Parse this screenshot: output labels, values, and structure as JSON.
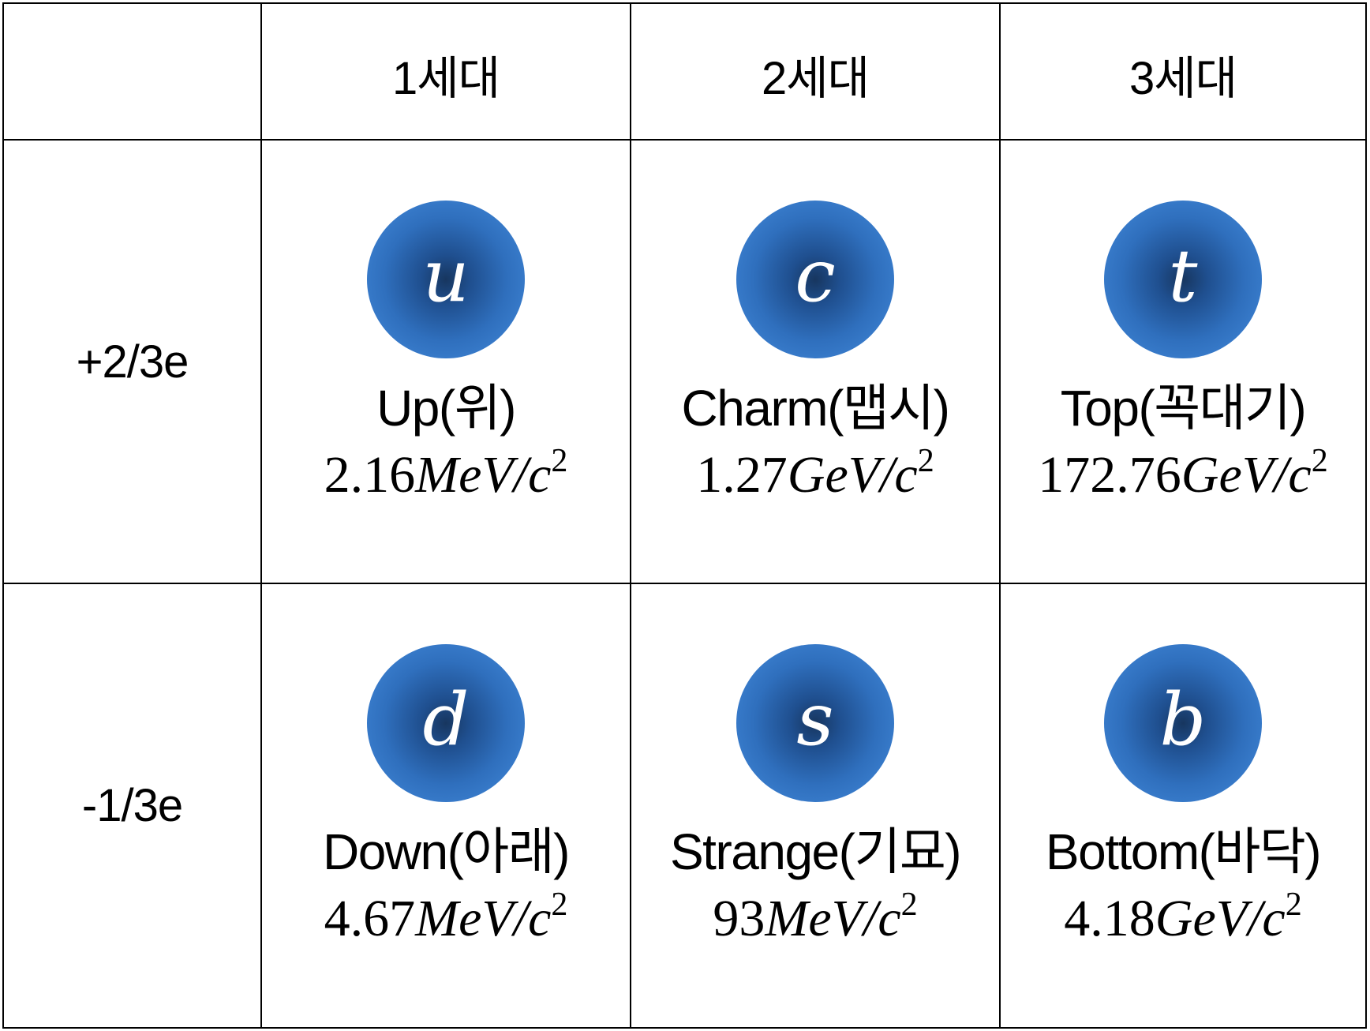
{
  "header": {
    "corner": "",
    "generations": [
      "1세대",
      "2세대",
      "3세대"
    ]
  },
  "rows": [
    {
      "charge": "+2/3e",
      "quarks": [
        {
          "symbol": "u",
          "name": "Up(위)",
          "mass_value": "2.16",
          "mass_unit": "MeV/c",
          "mass_exp": "2"
        },
        {
          "symbol": "c",
          "name": "Charm(맵시)",
          "mass_value": "1.27",
          "mass_unit": "GeV/c",
          "mass_exp": "2"
        },
        {
          "symbol": "t",
          "name": "Top(꼭대기)",
          "mass_value": "172.76",
          "mass_unit": "GeV/c",
          "mass_exp": "2"
        }
      ]
    },
    {
      "charge": "-1/3e",
      "quarks": [
        {
          "symbol": "d",
          "name": "Down(아래)",
          "mass_value": "4.67",
          "mass_unit": "MeV/c",
          "mass_exp": "2"
        },
        {
          "symbol": "s",
          "name": "Strange(기묘)",
          "mass_value": "93",
          "mass_unit": "MeV/c",
          "mass_exp": "2"
        },
        {
          "symbol": "b",
          "name": "Bottom(바닥)",
          "mass_value": "4.18",
          "mass_unit": "GeV/c",
          "mass_exp": "2"
        }
      ]
    }
  ],
  "colors": {
    "ball_center": "#17365f",
    "ball_edge": "#4589d6",
    "grid_line": "#000000",
    "symbol_text": "#ffffff"
  }
}
